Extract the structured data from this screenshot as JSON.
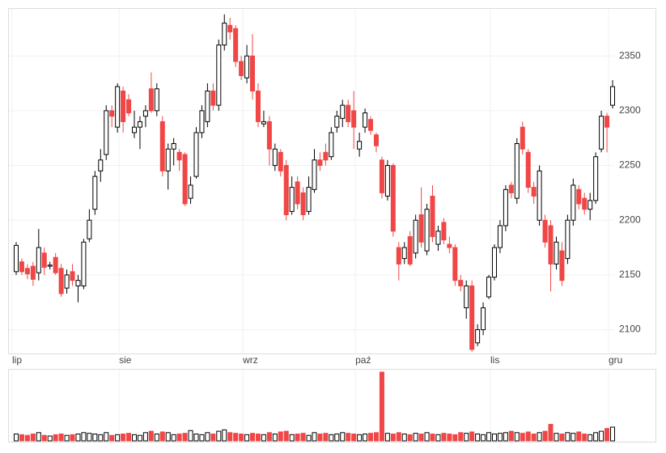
{
  "chart_data": {
    "type": "candlestick",
    "categories": [
      "lip",
      null,
      null,
      null,
      null,
      null,
      null,
      null,
      null,
      null,
      null,
      null,
      null,
      null,
      null,
      null,
      null,
      null,
      null,
      "sie",
      null,
      null,
      null,
      null,
      null,
      null,
      null,
      null,
      null,
      null,
      null,
      null,
      null,
      null,
      null,
      null,
      null,
      null,
      null,
      null,
      null,
      "wrz",
      null,
      null,
      null,
      null,
      null,
      null,
      null,
      null,
      null,
      null,
      null,
      null,
      null,
      null,
      null,
      null,
      null,
      null,
      null,
      "paź",
      null,
      null,
      null,
      null,
      null,
      null,
      null,
      null,
      null,
      null,
      null,
      null,
      null,
      null,
      null,
      null,
      null,
      null,
      null,
      null,
      null,
      null,
      null,
      "lis",
      null,
      null,
      null,
      null,
      null,
      null,
      null,
      null,
      null,
      null,
      null,
      null,
      null,
      null,
      null,
      null,
      null,
      null,
      null,
      null,
      "gru"
    ],
    "open": [
      2153,
      2162,
      2156,
      2158,
      2152,
      2170,
      2158,
      2166,
      2156,
      2138,
      2153,
      2140,
      2140,
      2183,
      2210,
      2245,
      2260,
      2300,
      2285,
      2318,
      2310,
      2280,
      2285,
      2295,
      2320,
      2300,
      2290,
      2245,
      2265,
      2262,
      2260,
      2220,
      2240,
      2280,
      2290,
      2318,
      2305,
      2360,
      2378,
      2375,
      2345,
      2330,
      2350,
      2318,
      2288,
      2290,
      2250,
      2262,
      2250,
      2208,
      2235,
      2225,
      2208,
      2228,
      2255,
      2262,
      2258,
      2285,
      2293,
      2305,
      2300,
      2265,
      2285,
      2292,
      2278,
      2255,
      2222,
      2250,
      2175,
      2165,
      2185,
      2170,
      2205,
      2172,
      2222,
      2178,
      2198,
      2178,
      2175,
      2145,
      2120,
      2140,
      2088,
      2100,
      2130,
      2148,
      2175,
      2195,
      2232,
      2220,
      2285,
      2262,
      2230,
      2200,
      2200,
      2195,
      2160,
      2172,
      2165,
      2200,
      2228,
      2220,
      2210,
      2218,
      2265,
      2295,
      2305
    ],
    "high": [
      2180,
      2165,
      2160,
      2162,
      2192,
      2175,
      2162,
      2170,
      2160,
      2155,
      2160,
      2150,
      2183,
      2210,
      2245,
      2265,
      2305,
      2305,
      2325,
      2322,
      2315,
      2300,
      2295,
      2305,
      2335,
      2325,
      2295,
      2270,
      2275,
      2265,
      2262,
      2240,
      2285,
      2305,
      2325,
      2325,
      2365,
      2388,
      2385,
      2378,
      2350,
      2360,
      2370,
      2325,
      2300,
      2295,
      2270,
      2265,
      2255,
      2240,
      2240,
      2230,
      2240,
      2265,
      2262,
      2270,
      2285,
      2300,
      2310,
      2310,
      2318,
      2280,
      2302,
      2295,
      2280,
      2258,
      2255,
      2252,
      2180,
      2180,
      2190,
      2205,
      2230,
      2215,
      2232,
      2195,
      2202,
      2185,
      2178,
      2150,
      2145,
      2145,
      2105,
      2125,
      2150,
      2178,
      2200,
      2232,
      2235,
      2275,
      2290,
      2265,
      2235,
      2250,
      2205,
      2200,
      2185,
      2180,
      2205,
      2238,
      2232,
      2225,
      2225,
      2262,
      2300,
      2298,
      2328
    ],
    "low": [
      2150,
      2150,
      2146,
      2140,
      2145,
      2150,
      2155,
      2150,
      2130,
      2133,
      2140,
      2125,
      2137,
      2180,
      2205,
      2235,
      2255,
      2285,
      2280,
      2280,
      2295,
      2275,
      2265,
      2285,
      2298,
      2295,
      2240,
      2228,
      2250,
      2245,
      2213,
      2215,
      2238,
      2275,
      2285,
      2300,
      2300,
      2355,
      2365,
      2340,
      2328,
      2325,
      2310,
      2285,
      2285,
      2250,
      2245,
      2240,
      2200,
      2205,
      2210,
      2200,
      2205,
      2225,
      2245,
      2250,
      2255,
      2280,
      2285,
      2285,
      2265,
      2258,
      2280,
      2278,
      2262,
      2220,
      2218,
      2185,
      2145,
      2160,
      2158,
      2165,
      2175,
      2168,
      2180,
      2172,
      2178,
      2170,
      2140,
      2135,
      2110,
      2080,
      2085,
      2095,
      2128,
      2145,
      2170,
      2190,
      2220,
      2215,
      2260,
      2225,
      2215,
      2195,
      2175,
      2135,
      2155,
      2140,
      2160,
      2195,
      2210,
      2205,
      2200,
      2215,
      2262,
      2262,
      2302
    ],
    "close": [
      2177,
      2153,
      2151,
      2146,
      2175,
      2157,
      2159,
      2152,
      2133,
      2150,
      2145,
      2145,
      2180,
      2200,
      2240,
      2255,
      2300,
      2295,
      2322,
      2290,
      2298,
      2285,
      2290,
      2300,
      2300,
      2320,
      2245,
      2265,
      2270,
      2255,
      2215,
      2232,
      2280,
      2300,
      2318,
      2305,
      2360,
      2380,
      2372,
      2345,
      2332,
      2350,
      2318,
      2290,
      2290,
      2265,
      2265,
      2245,
      2205,
      2230,
      2215,
      2205,
      2230,
      2255,
      2250,
      2255,
      2280,
      2295,
      2305,
      2290,
      2285,
      2272,
      2298,
      2282,
      2268,
      2225,
      2250,
      2190,
      2160,
      2175,
      2160,
      2200,
      2180,
      2210,
      2185,
      2190,
      2182,
      2175,
      2145,
      2140,
      2140,
      2082,
      2100,
      2120,
      2148,
      2175,
      2195,
      2228,
      2225,
      2270,
      2265,
      2230,
      2222,
      2245,
      2180,
      2160,
      2180,
      2145,
      2200,
      2232,
      2215,
      2210,
      2218,
      2258,
      2295,
      2285,
      2322
    ],
    "volume": [
      10,
      9,
      8,
      10,
      12,
      8,
      7,
      9,
      10,
      8,
      9,
      10,
      12,
      11,
      10,
      9,
      12,
      8,
      9,
      10,
      11,
      9,
      8,
      12,
      14,
      10,
      13,
      12,
      9,
      10,
      11,
      15,
      10,
      9,
      12,
      10,
      14,
      16,
      12,
      11,
      10,
      9,
      11,
      10,
      9,
      12,
      10,
      13,
      14,
      9,
      10,
      11,
      8,
      12,
      10,
      11,
      9,
      10,
      12,
      11,
      10,
      9,
      10,
      11,
      12,
      100,
      11,
      10,
      12,
      10,
      9,
      11,
      10,
      12,
      10,
      9,
      11,
      10,
      9,
      12,
      11,
      13,
      10,
      9,
      12,
      10,
      11,
      12,
      14,
      12,
      11,
      13,
      10,
      12,
      14,
      24,
      11,
      10,
      12,
      11,
      13,
      10,
      9,
      12,
      14,
      18,
      20
    ],
    "ylim": [
      2079,
      2393
    ],
    "yticks": [
      2100,
      2150,
      2200,
      2250,
      2300,
      2350
    ],
    "grid": true,
    "up_color": "#ffffff",
    "down_color": "#f04646",
    "outline_color": "#000000"
  }
}
